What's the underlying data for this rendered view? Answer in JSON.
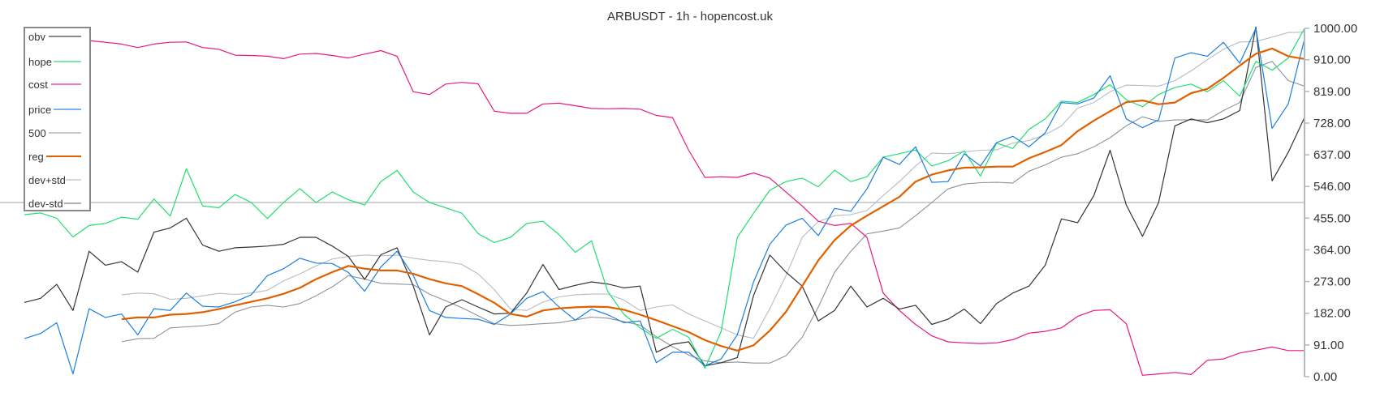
{
  "chart_data": {
    "type": "line",
    "title": "ARBUSDT - 1h - hopencost.uk",
    "ylim": [
      0,
      1000
    ],
    "y_axis_position": "right",
    "y_ticks": [
      "0.00",
      "91.00",
      "182.00",
      "273.00",
      "364.00",
      "455.00",
      "546.00",
      "637.00",
      "728.00",
      "819.00",
      "910.00",
      "1000.00"
    ],
    "y_tick_values": [
      0,
      91,
      182,
      273,
      364,
      455,
      546,
      637,
      728,
      819,
      910,
      1000
    ],
    "grid": false,
    "legend_position": "top-left",
    "series": [
      {
        "name": "obv",
        "color": "#333333",
        "width": 1.2,
        "values": [
          213,
          225,
          265,
          190,
          360,
          320,
          330,
          300,
          415,
          427,
          455,
          378,
          360,
          370,
          372,
          375,
          380,
          400,
          400,
          375,
          345,
          279,
          350,
          370,
          260,
          120,
          200,
          221,
          200,
          180,
          182,
          240,
          322,
          250,
          262,
          272,
          266,
          255,
          260,
          70,
          93,
          100,
          31,
          40,
          55,
          233,
          349,
          300,
          260,
          160,
          190,
          260,
          200,
          225,
          194,
          205,
          150,
          165,
          194,
          152,
          210,
          240,
          260,
          320,
          453,
          442,
          520,
          650,
          493,
          403,
          500,
          720,
          740,
          729,
          740,
          764,
          1004,
          562,
          644,
          744
        ]
      },
      {
        "name": "hope",
        "color": "#1ee06e",
        "width": 1.2,
        "values": [
          465,
          470,
          455,
          401,
          434,
          440,
          458,
          452,
          510,
          461,
          597,
          490,
          485,
          523,
          500,
          454,
          500,
          540,
          500,
          530,
          508,
          493,
          560,
          592,
          530,
          500,
          485,
          469,
          411,
          385,
          400,
          440,
          446,
          408,
          357,
          390,
          245,
          179,
          140,
          110,
          136,
          113,
          24,
          130,
          400,
          469,
          535,
          560,
          570,
          545,
          593,
          560,
          574,
          630,
          640,
          651,
          605,
          620,
          648,
          576,
          671,
          655,
          710,
          740,
          791,
          787,
          810,
          838,
          795,
          775,
          810,
          830,
          840,
          818,
          850,
          805,
          905,
          880,
          915,
          1000
        ]
      },
      {
        "name": "cost",
        "color": "#e6197f",
        "width": 1.2,
        "values": [
          965,
          965,
          963,
          962,
          965,
          960,
          955,
          945,
          955,
          960,
          961,
          945,
          940,
          923,
          922,
          920,
          913,
          926,
          928,
          922,
          915,
          926,
          936,
          920,
          818,
          810,
          840,
          845,
          841,
          762,
          756,
          756,
          783,
          785,
          778,
          770,
          769,
          770,
          768,
          750,
          744,
          650,
          572,
          574,
          572,
          585,
          570,
          530,
          490,
          446,
          434,
          440,
          400,
          240,
          190,
          150,
          117,
          100,
          97,
          95,
          97,
          106,
          125,
          130,
          140,
          173,
          190,
          192,
          152,
          4,
          8,
          12,
          6,
          47,
          51,
          68,
          76,
          85,
          75,
          75
        ]
      },
      {
        "name": "price",
        "color": "#1a7fe0",
        "width": 1.2,
        "values": [
          109,
          124,
          155,
          8,
          195,
          170,
          180,
          120,
          195,
          190,
          240,
          202,
          200,
          215,
          235,
          290,
          310,
          340,
          326,
          325,
          299,
          245,
          315,
          360,
          290,
          190,
          170,
          167,
          165,
          150,
          180,
          225,
          244,
          200,
          162,
          194,
          178,
          155,
          160,
          40,
          70,
          70,
          31,
          51,
          120,
          272,
          380,
          435,
          455,
          405,
          483,
          475,
          539,
          630,
          609,
          660,
          558,
          560,
          640,
          605,
          672,
          690,
          660,
          700,
          787,
          783,
          800,
          864,
          740,
          715,
          737,
          915,
          930,
          920,
          960,
          900,
          1000,
          713,
          783,
          969
        ]
      },
      {
        "name": "500",
        "color": "#c0c0c0",
        "width": 1.5,
        "constant": 500
      },
      {
        "name": "reg",
        "color": "#e06000",
        "width": 2.2,
        "values": [
          null,
          null,
          null,
          null,
          null,
          null,
          165,
          170,
          170,
          178,
          180,
          185,
          194,
          205,
          215,
          225,
          238,
          255,
          280,
          300,
          318,
          310,
          305,
          305,
          295,
          280,
          268,
          260,
          237,
          212,
          180,
          172,
          190,
          196,
          199,
          201,
          200,
          192,
          178,
          162,
          145,
          128,
          105,
          88,
          75,
          90,
          132,
          186,
          260,
          334,
          392,
          434,
          462,
          489,
          516,
          560,
          580,
          592,
          600,
          601,
          603,
          603,
          627,
          645,
          665,
          705,
          735,
          762,
          788,
          793,
          782,
          787,
          814,
          826,
          858,
          893,
          927,
          942,
          920,
          912
        ]
      },
      {
        "name": "dev+std",
        "color": "#b4bcc3",
        "width": 1.1,
        "values": [
          null,
          null,
          null,
          null,
          null,
          null,
          235,
          240,
          238,
          222,
          225,
          232,
          239,
          236,
          240,
          248,
          275,
          295,
          318,
          338,
          345,
          349,
          347,
          349,
          340,
          334,
          330,
          322,
          295,
          250,
          194,
          190,
          214,
          229,
          235,
          237,
          237,
          220,
          190,
          200,
          206,
          180,
          160,
          140,
          120,
          110,
          195,
          290,
          400,
          445,
          462,
          465,
          477,
          520,
          560,
          605,
          642,
          640,
          645,
          650,
          651,
          671,
          678,
          695,
          720,
          771,
          787,
          818,
          837,
          836,
          834,
          850,
          878,
          910,
          940,
          961,
          962,
          975,
          988,
          989
        ]
      },
      {
        "name": "dev-std",
        "color": "#8a939b",
        "width": 1.1,
        "values": [
          null,
          null,
          null,
          null,
          null,
          null,
          100,
          109,
          110,
          140,
          143,
          146,
          152,
          185,
          200,
          205,
          200,
          210,
          232,
          258,
          290,
          280,
          268,
          266,
          264,
          237,
          218,
          198,
          175,
          152,
          147,
          149,
          152,
          155,
          163,
          171,
          168,
          158,
          148,
          115,
          86,
          62,
          45,
          40,
          42,
          39,
          39,
          60,
          113,
          200,
          300,
          360,
          410,
          418,
          427,
          462,
          500,
          539,
          553,
          557,
          558,
          556,
          590,
          608,
          630,
          640,
          660,
          686,
          720,
          746,
          733,
          737,
          737,
          737,
          764,
          787,
          888,
          905,
          850,
          834
        ]
      }
    ],
    "legend": [
      {
        "label": "obv",
        "color": "#8a8a8a"
      },
      {
        "label": "hope",
        "color": "#7ee8a6"
      },
      {
        "label": "cost",
        "color": "#ee77b5"
      },
      {
        "label": "price",
        "color": "#7ab4ea"
      },
      {
        "label": "500",
        "color": "#c8c8c8"
      },
      {
        "label": "reg",
        "color": "#e06000"
      },
      {
        "label": "dev+std",
        "color": "#d2d7db"
      },
      {
        "label": "dev-std",
        "color": "#a9b1b8"
      }
    ]
  }
}
